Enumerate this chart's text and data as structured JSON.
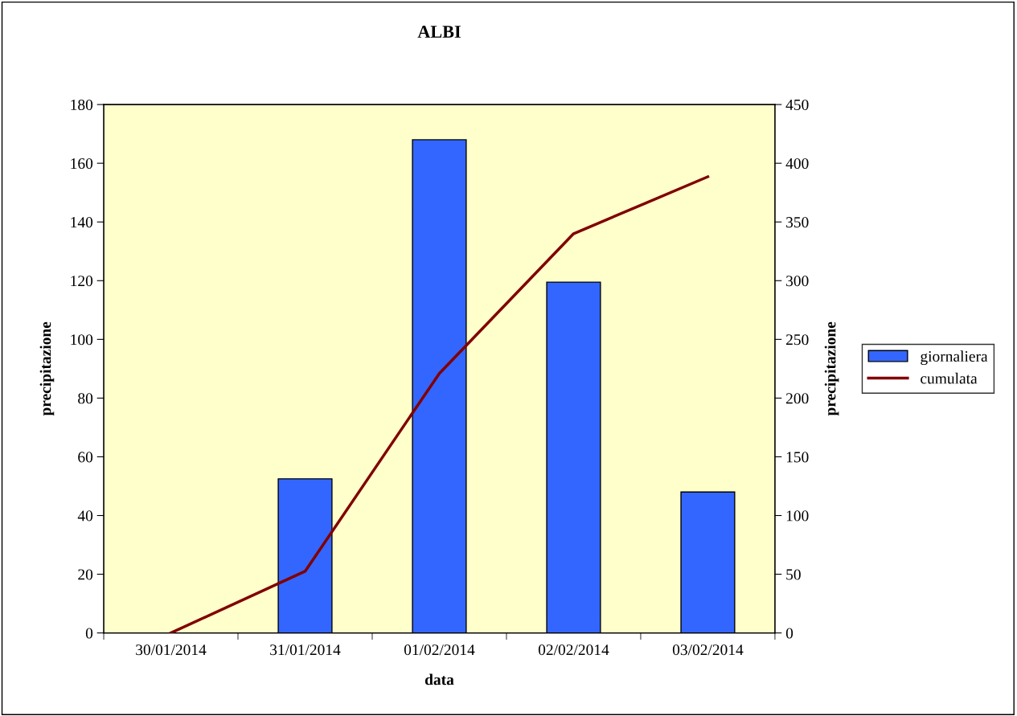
{
  "chart_data": {
    "type": "bar",
    "title": "ALBI",
    "xlabel": "data",
    "ylabel": "precipitazione",
    "y2label": "precipitazione",
    "categories": [
      "30/01/2014",
      "31/01/2014",
      "01/02/2014",
      "02/02/2014",
      "03/02/2014"
    ],
    "series": [
      {
        "name": "giornaliera",
        "color": "#3366ff",
        "values": [
          0,
          52.5,
          168,
          119.5,
          48
        ]
      },
      {
        "name": "cumulata",
        "type": "line",
        "axis": "y2",
        "color": "#800000",
        "values": [
          0,
          52.5,
          221,
          340,
          388.5
        ]
      }
    ],
    "ylim": [
      0,
      180
    ],
    "yticks": [
      0,
      20,
      40,
      60,
      80,
      100,
      120,
      140,
      160,
      180
    ],
    "y2lim": [
      0,
      450
    ],
    "y2ticks": [
      0,
      50,
      100,
      150,
      200,
      250,
      300,
      350,
      400,
      450
    ],
    "grid": false,
    "legend": "right",
    "marker": "none",
    "line_style": "solid"
  }
}
